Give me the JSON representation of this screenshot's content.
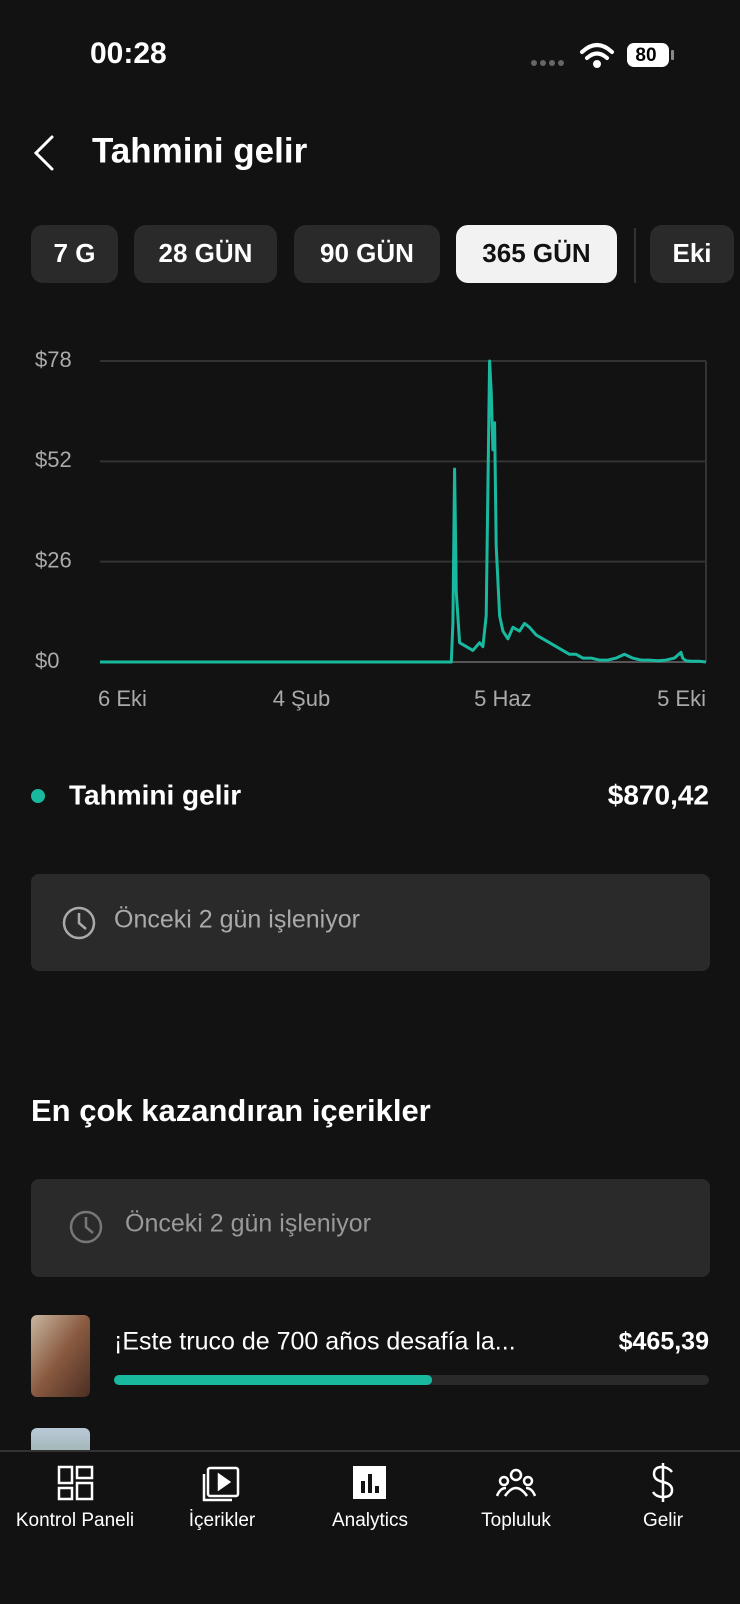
{
  "status_bar": {
    "time": "00:28",
    "battery": "80"
  },
  "header": {
    "title": "Tahmini gelir"
  },
  "tabs": {
    "items": [
      "7 G",
      "28 GÜN",
      "90 GÜN",
      "365 GÜN",
      "Eki"
    ],
    "selected": 3
  },
  "chart_data": {
    "type": "line",
    "x": [
      0,
      50,
      100,
      150,
      200,
      211,
      212,
      213,
      214,
      216,
      220,
      224,
      228,
      230,
      232,
      233,
      234,
      235,
      236,
      237,
      238,
      240,
      242,
      245,
      248,
      252,
      255,
      258,
      262,
      266,
      270,
      274,
      278,
      282,
      286,
      290,
      295,
      300,
      305,
      310,
      315,
      320,
      325,
      330,
      335,
      340,
      345,
      349,
      350,
      352,
      355,
      360,
      364
    ],
    "xlim": [
      0,
      364
    ],
    "xticks": [
      {
        "value": 0,
        "label": "6 Eki"
      },
      {
        "value": 121,
        "label": "4 Şub"
      },
      {
        "value": 242,
        "label": "5 Haz"
      },
      {
        "value": 364,
        "label": "5 Eki"
      }
    ],
    "ylim": [
      0,
      78
    ],
    "yticks": [
      {
        "value": 0,
        "label": "$0"
      },
      {
        "value": 26,
        "label": "$26"
      },
      {
        "value": 52,
        "label": "$52"
      },
      {
        "value": 78,
        "label": "$78"
      }
    ],
    "grid": true,
    "series": [
      {
        "name": "Tahmini gelir",
        "color": "#19b99f",
        "values": [
          0,
          0,
          0,
          0,
          0,
          0,
          10,
          50,
          18,
          5,
          4,
          3,
          5,
          4,
          12,
          45,
          78,
          70,
          55,
          62,
          30,
          12,
          8,
          6,
          9,
          8,
          10,
          9,
          7,
          6,
          5,
          4,
          3,
          2,
          2,
          1,
          1,
          0.5,
          0.5,
          1,
          2,
          1,
          0.5,
          0.5,
          0.3,
          0.5,
          1,
          2.5,
          1,
          0.3,
          0.2,
          0.2,
          0
        ]
      }
    ],
    "total": 870.42,
    "total_label": "$870,42"
  },
  "processing_notice": "Önceki 2 gün işleniyor",
  "top_content": {
    "title": "En çok kazandıran içerikler",
    "notice": "Önceki 2 gün işleniyor",
    "items": [
      {
        "title": "¡Este truco de 700 años desafía la...",
        "value": 465.39,
        "value_label": "$465,39"
      }
    ]
  },
  "nav": [
    "Kontrol Paneli",
    "İçerikler",
    "Analytics",
    "Topluluk",
    "Gelir"
  ]
}
